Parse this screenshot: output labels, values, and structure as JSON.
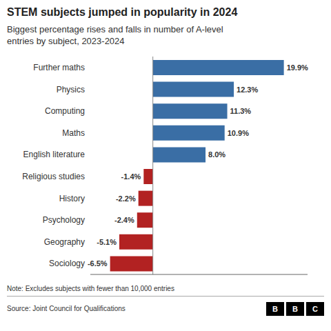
{
  "chart_data": {
    "type": "bar",
    "orientation": "horizontal",
    "title": "STEM subjects jumped in popularity in 2024",
    "subtitle": "Biggest percentage rises and falls in number of A-level entries by subject, 2023-2024",
    "categories": [
      "Further maths",
      "Physics",
      "Computing",
      "Maths",
      "English literature",
      "Religious studies",
      "History",
      "Psychology",
      "Geography",
      "Sociology"
    ],
    "values": [
      19.9,
      12.3,
      11.3,
      10.9,
      8.0,
      -1.4,
      -2.2,
      -2.4,
      -5.1,
      -6.5
    ],
    "value_labels": [
      "19.9%",
      "12.3%",
      "11.3%",
      "10.9%",
      "8.0%",
      "-1.4%",
      "-2.2%",
      "-2.4%",
      "-5.1%",
      "-6.5%"
    ],
    "data_labels": true,
    "colors": [
      "#3a6ea5",
      "#3a6ea5",
      "#3a6ea5",
      "#3a6ea5",
      "#3a6ea5",
      "#b22222",
      "#b22222",
      "#b22222",
      "#b22222",
      "#b22222"
    ],
    "xlim": [
      -9.5,
      23.5
    ],
    "xticks": [],
    "tick_labels": "y",
    "grid": false,
    "annotations": [
      "Note: Excludes subjects with fewer than 10,000 entries",
      "Source: Joint Council for Qualifications",
      "BBC"
    ]
  }
}
